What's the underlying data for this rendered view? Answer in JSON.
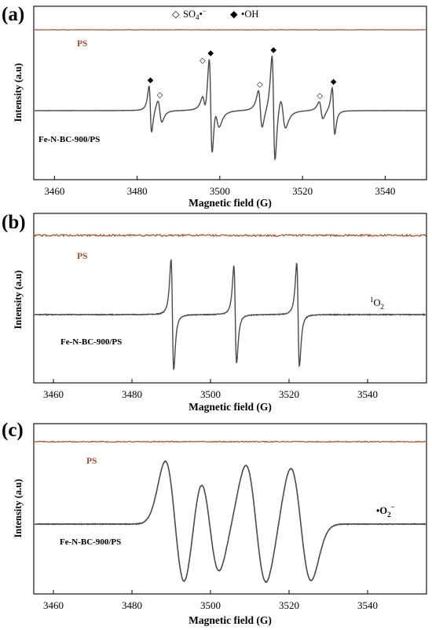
{
  "colors": {
    "ps_trace": "#a0502d",
    "sample_trace": "#4a4a4a",
    "ps_label": "#a0502d",
    "frame": "#000000"
  },
  "chart_data": [
    {
      "panel": "(a)",
      "type": "line",
      "xlabel": "Magnetic field (G)",
      "ylabel": "Intensity (a.u)",
      "xlim": [
        3455,
        3550
      ],
      "xticks": [
        3460,
        3480,
        3500,
        3520,
        3540
      ],
      "legend": [
        {
          "marker": "◇",
          "text": "SO₄•⁻"
        },
        {
          "marker": "◆",
          "text": "•OH"
        }
      ],
      "series": [
        {
          "name": "PS",
          "noise": 0.25
        },
        {
          "name": "Fe-N-BC-900/PS",
          "noise": 0.15,
          "lines": [
            {
              "x": 3483.2,
              "a": 30,
              "w": 0.55
            },
            {
              "x": 3485.5,
              "a": 14,
              "w": 0.85
            },
            {
              "x": 3497.8,
              "a": 64,
              "w": 0.65
            },
            {
              "x": 3496.2,
              "a": 11,
              "w": 0.75
            },
            {
              "x": 3499.3,
              "a": 16,
              "w": 1.1
            },
            {
              "x": 3513.0,
              "a": 68,
              "w": 0.65
            },
            {
              "x": 3509.8,
              "a": 24,
              "w": 0.8
            },
            {
              "x": 3515.3,
              "a": 20,
              "w": 1.1
            },
            {
              "x": 3527.5,
              "a": 30,
              "w": 0.55
            },
            {
              "x": 3524.5,
              "a": 11,
              "w": 0.8
            }
          ]
        }
      ],
      "markers": [
        {
          "x": 3483.2,
          "symbol": "◆",
          "species": "•OH"
        },
        {
          "x": 3485.5,
          "symbol": "◇",
          "species": "SO₄•⁻"
        },
        {
          "x": 3495.8,
          "symbol": "◇",
          "species": "SO₄•⁻"
        },
        {
          "x": 3497.8,
          "symbol": "◆",
          "species": "•OH"
        },
        {
          "x": 3509.7,
          "symbol": "◇",
          "species": "SO₄•⁻"
        },
        {
          "x": 3513.0,
          "symbol": "◆",
          "species": "•OH"
        },
        {
          "x": 3524.2,
          "symbol": "◇",
          "species": "SO₄•⁻"
        },
        {
          "x": 3527.5,
          "symbol": "◆",
          "species": "•OH"
        }
      ]
    },
    {
      "panel": "(b)",
      "type": "line",
      "xlabel": "Magnetic field (G)",
      "ylabel": "Intensity (a.u)",
      "xlim": [
        3455,
        3555
      ],
      "xticks": [
        3460,
        3480,
        3500,
        3520,
        3540
      ],
      "annotation": {
        "sup": "1",
        "main": "O",
        "sub": "2"
      },
      "series": [
        {
          "name": "PS",
          "noise": 1.2
        },
        {
          "name": "Fe-N-BC-900/PS",
          "noise": 0.5,
          "lines": [
            {
              "x": 3490.3,
              "a": 70,
              "w": 0.6
            },
            {
              "x": 3506.3,
              "a": 62,
              "w": 0.6
            },
            {
              "x": 3522.3,
              "a": 66,
              "w": 0.6
            }
          ]
        }
      ]
    },
    {
      "panel": "(c)",
      "type": "line",
      "xlabel": "Magnetic field (G)",
      "ylabel": "Intensity (a.u)",
      "xlim": [
        3455,
        3555
      ],
      "xticks": [
        3460,
        3480,
        3500,
        3520,
        3540
      ],
      "annotation": {
        "main": "•O",
        "sub": "2",
        "sup": "−"
      },
      "series": [
        {
          "name": "PS",
          "noise": 0.6
        },
        {
          "name": "Fe-N-BC-900/PS",
          "noise": 0.4,
          "lines": [
            {
              "x": 3491.0,
              "a": 80,
              "w": 2.5
            },
            {
              "x": 3499.8,
              "a": 60,
              "w": 2.4
            },
            {
              "x": 3511.6,
              "a": 75,
              "w": 2.6
            },
            {
              "x": 3523.0,
              "a": 72,
              "w": 2.6
            }
          ]
        }
      ]
    }
  ]
}
